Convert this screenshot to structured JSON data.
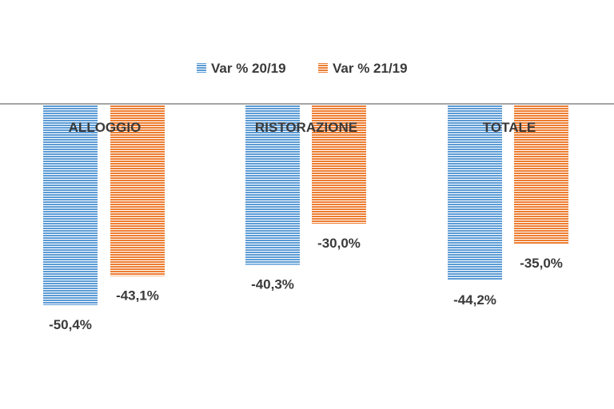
{
  "chart_data": {
    "type": "bar",
    "categories": [
      "ALLOGGIO",
      "RISTORAZIONE",
      "TOTALE"
    ],
    "series": [
      {
        "name": "Var % 20/19",
        "color": "#5b9bd5",
        "values": [
          -50.4,
          -40.3,
          -44.2
        ],
        "labels": [
          "-50,4%",
          "-40,3%",
          "-44,2%"
        ]
      },
      {
        "name": "Var % 21/19",
        "color": "#ed7d31",
        "values": [
          -43.1,
          -30.0,
          -35.0
        ],
        "labels": [
          "-43,1%",
          "-30,0%",
          "-35,0%"
        ]
      }
    ],
    "title": "",
    "xlabel": "",
    "ylabel": "",
    "ylim": [
      -60,
      0
    ],
    "grid": false,
    "legend_position": "top",
    "bar_pattern": "horizontal-stripes"
  }
}
